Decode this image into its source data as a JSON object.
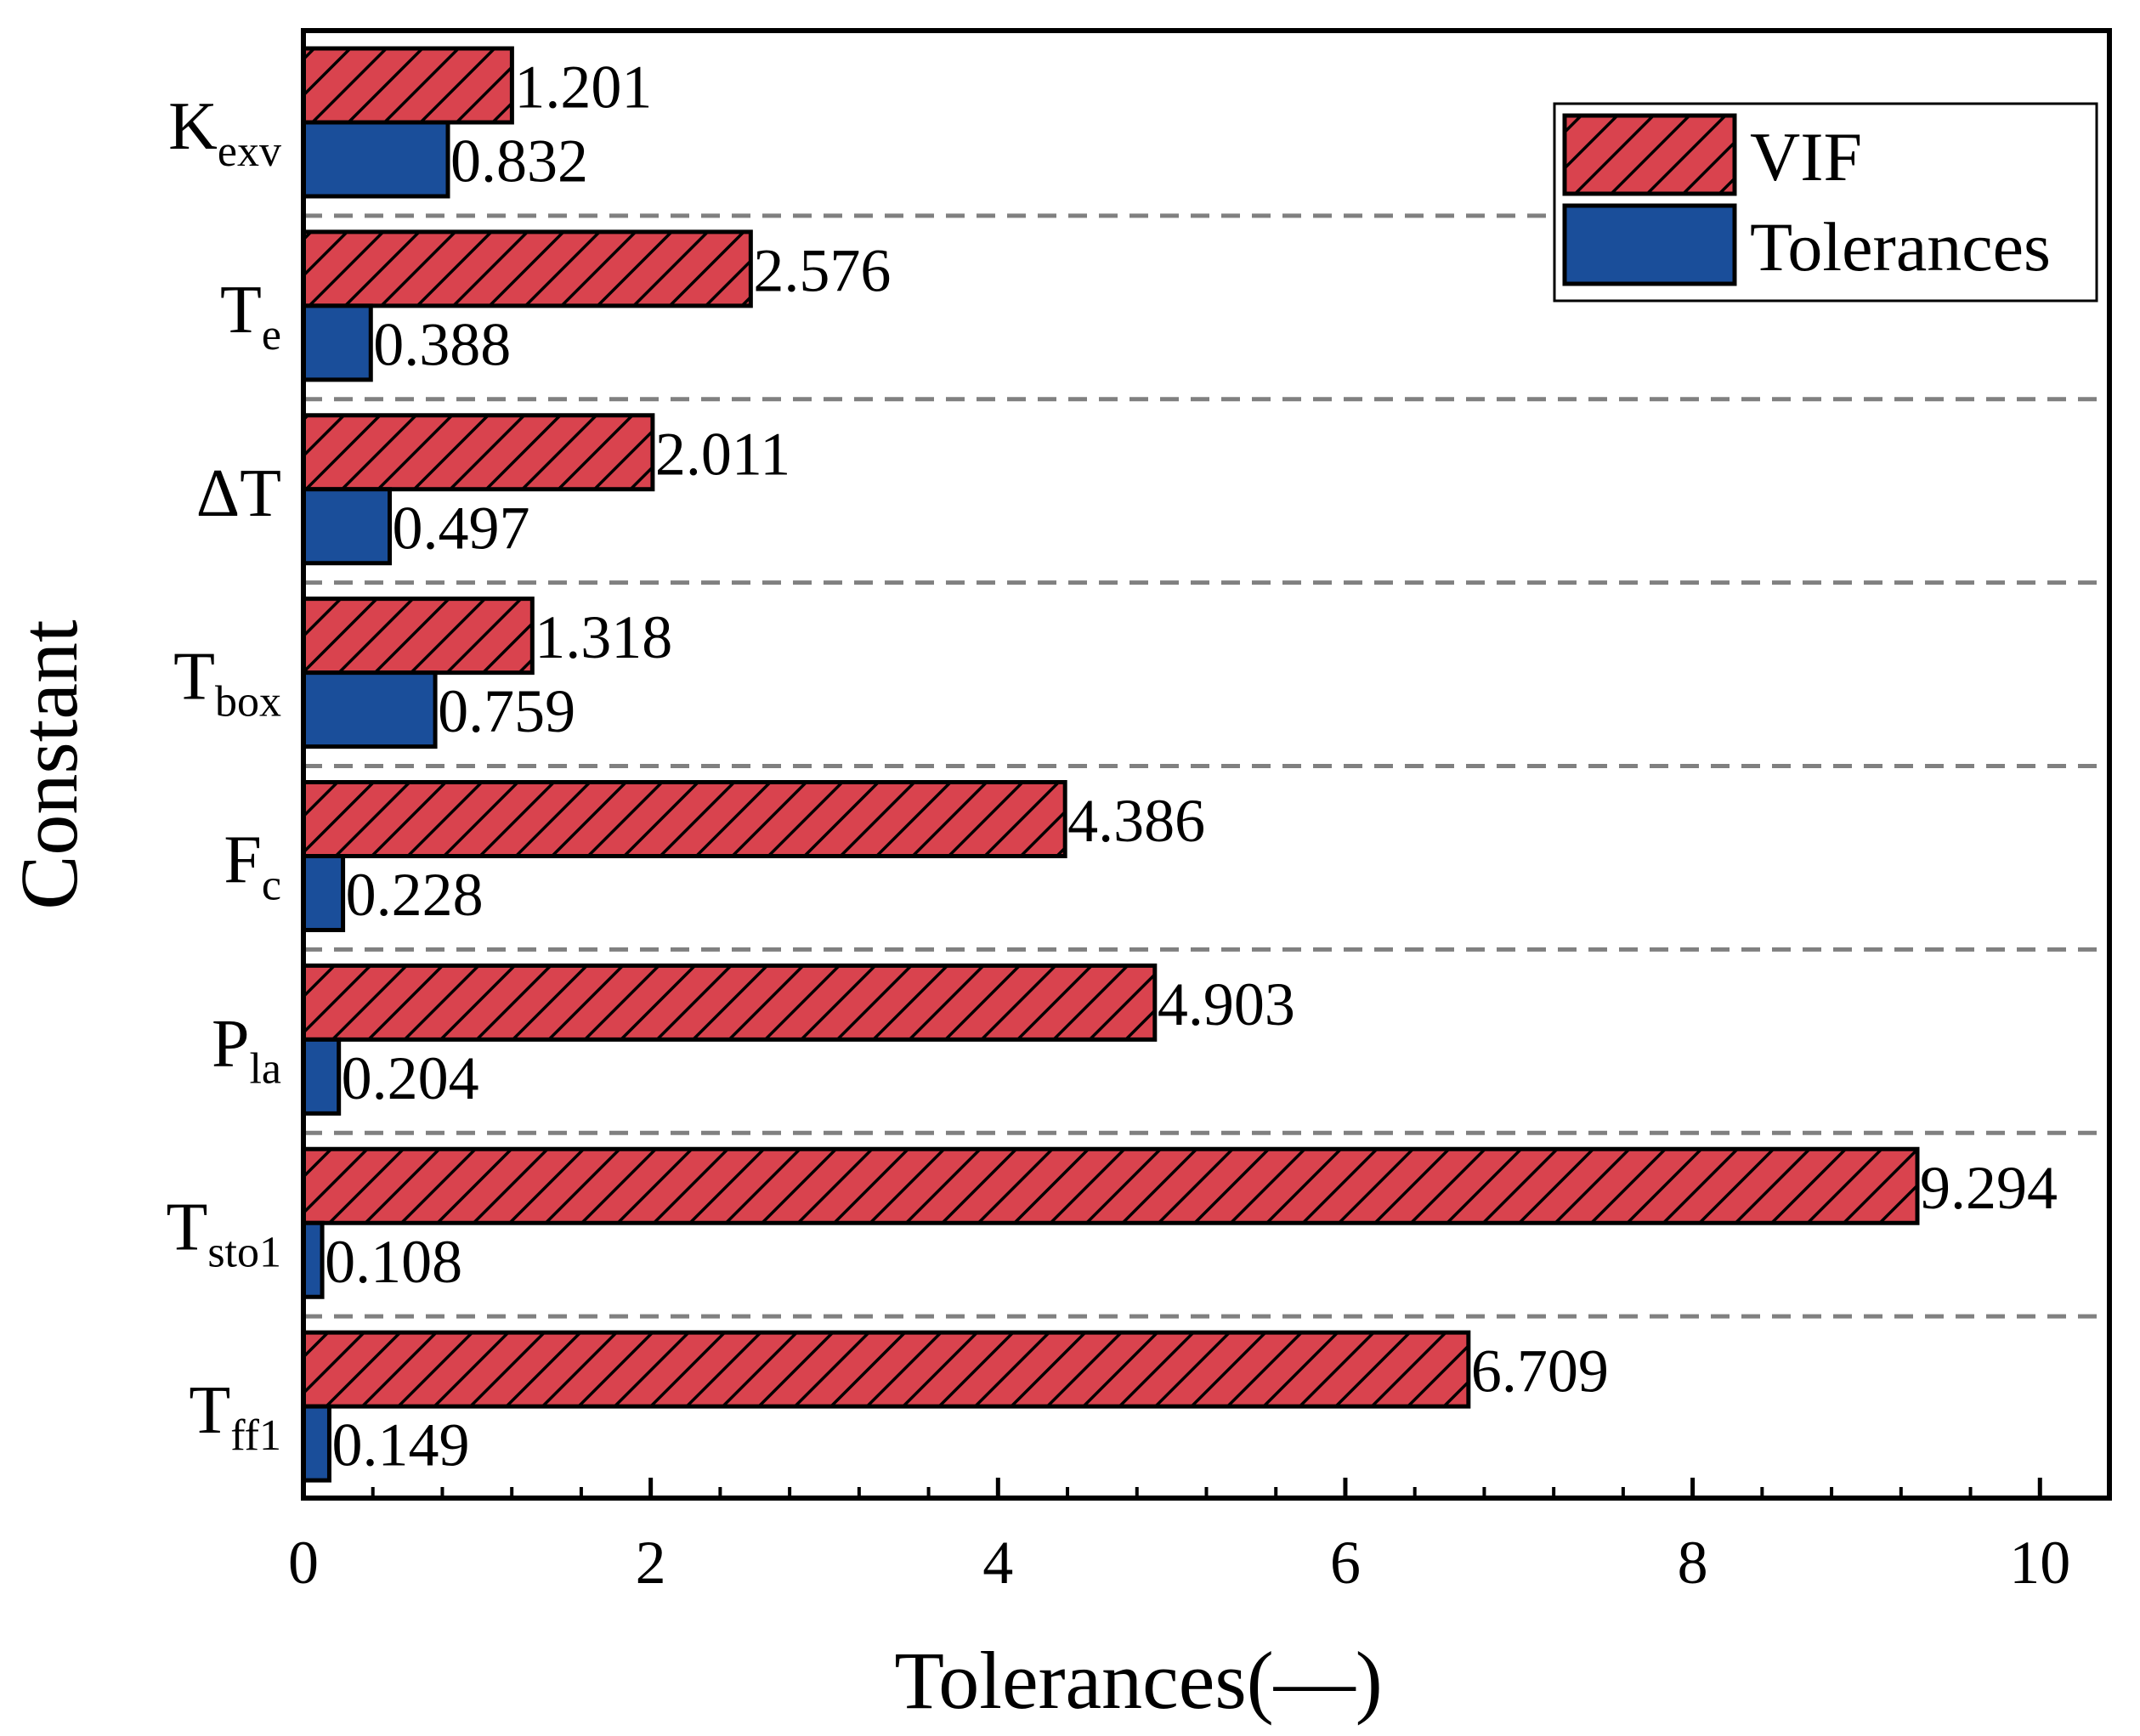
{
  "chart_data": {
    "type": "bar",
    "orientation": "horizontal",
    "title": "",
    "xlabel": "Tolerances(—)",
    "ylabel": "Constant",
    "xlim": [
      0,
      10.4
    ],
    "xticks": [
      0,
      2,
      4,
      6,
      8,
      10
    ],
    "xtick_labels": [
      "0",
      "2",
      "4",
      "6",
      "8",
      "10"
    ],
    "categories": [
      {
        "main": "K",
        "sub": "exv"
      },
      {
        "main": "T",
        "sub": "e"
      },
      {
        "main": "ΔT",
        "sub": ""
      },
      {
        "main": "T",
        "sub": "box"
      },
      {
        "main": "F",
        "sub": "c"
      },
      {
        "main": "P",
        "sub": "la"
      },
      {
        "main": "T",
        "sub": "sto1"
      },
      {
        "main": "T",
        "sub": "ff1"
      }
    ],
    "series": [
      {
        "name": "VIF",
        "color": "#d9434e",
        "hatch": "diagonal",
        "values": [
          1.201,
          2.576,
          2.011,
          1.318,
          4.386,
          4.903,
          9.294,
          6.709
        ],
        "labels": [
          "1.201",
          "2.576",
          "2.011",
          "1.318",
          "4.386",
          "4.903",
          "9.294",
          "6.709"
        ]
      },
      {
        "name": "Tolerances",
        "color": "#1a4e9a",
        "hatch": "none",
        "values": [
          0.832,
          0.388,
          0.497,
          0.759,
          0.228,
          0.204,
          0.108,
          0.149
        ],
        "labels": [
          "0.832",
          "0.388",
          "0.497",
          "0.759",
          "0.228",
          "0.204",
          "0.108",
          "0.149"
        ]
      }
    ],
    "legend_position": "top-right",
    "grid": false,
    "category_separators": "dashed"
  }
}
